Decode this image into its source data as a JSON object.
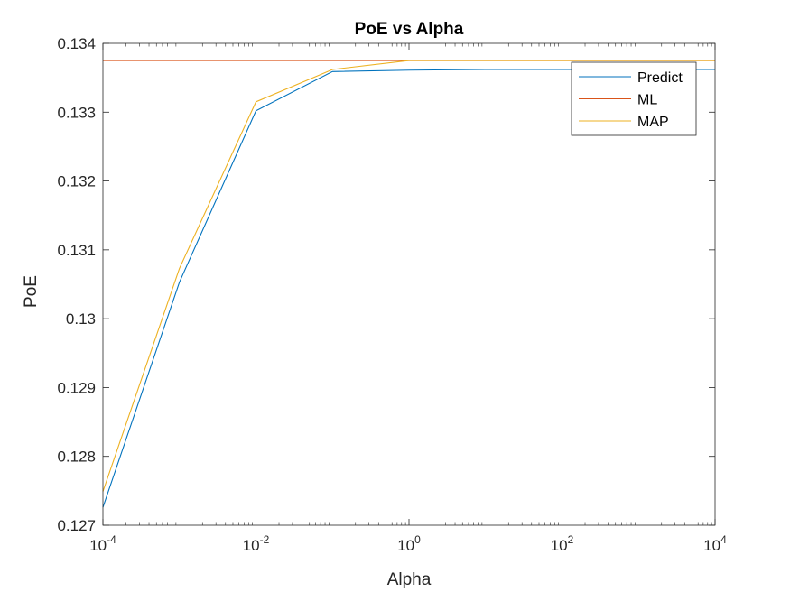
{
  "chart_data": {
    "type": "line",
    "title": "PoE vs Alpha",
    "xlabel": "Alpha",
    "ylabel": "PoE",
    "xscale": "log",
    "xlim": [
      0.0001,
      10000
    ],
    "ylim": [
      0.127,
      0.134
    ],
    "x_ticks": [
      0.0001,
      0.01,
      1,
      100,
      10000
    ],
    "x_tick_labels": [
      {
        "base": "10",
        "exp": "-4"
      },
      {
        "base": "10",
        "exp": "-2"
      },
      {
        "base": "10",
        "exp": "0"
      },
      {
        "base": "10",
        "exp": "2"
      },
      {
        "base": "10",
        "exp": "4"
      }
    ],
    "y_ticks": [
      0.127,
      0.128,
      0.129,
      0.13,
      0.131,
      0.132,
      0.133,
      0.134
    ],
    "y_tick_labels": [
      "0.127",
      "0.128",
      "0.129",
      "0.13",
      "0.131",
      "0.132",
      "0.133",
      "0.134"
    ],
    "grid": false,
    "legend_position": "top-right",
    "x": [
      0.0001,
      0.001,
      0.01,
      0.1,
      1,
      10,
      100,
      1000,
      10000
    ],
    "series": [
      {
        "name": "Predict",
        "color": "#0072BD",
        "values": [
          0.12726,
          0.13053,
          0.13302,
          0.13359,
          0.13361,
          0.13362,
          0.13362,
          0.13362,
          0.13362
        ]
      },
      {
        "name": "ML",
        "color": "#D95319",
        "values": [
          0.13375,
          0.13375,
          0.13375,
          0.13375,
          0.13375,
          0.13375,
          0.13375,
          0.13375,
          0.13375
        ]
      },
      {
        "name": "MAP",
        "color": "#EDB120",
        "values": [
          0.12749,
          0.13073,
          0.13315,
          0.13362,
          0.13375,
          0.13375,
          0.13375,
          0.13375,
          0.13375
        ]
      }
    ]
  }
}
